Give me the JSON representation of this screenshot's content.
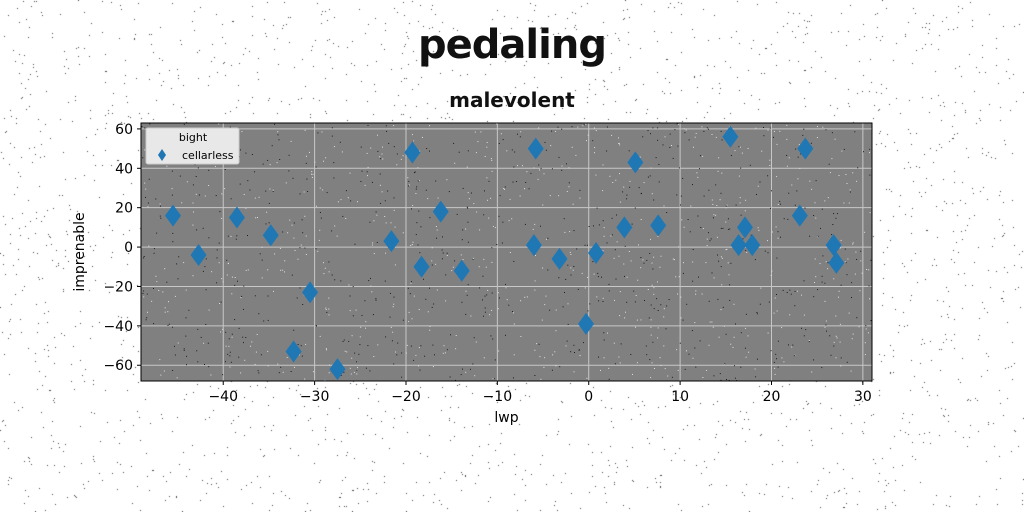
{
  "figure": {
    "suptitle": "pedaling",
    "subtitle": "malevolent"
  },
  "chart_data": {
    "type": "scatter",
    "title": "malevolent",
    "xlabel": "lwp",
    "ylabel": "imprenable",
    "xlim": [
      -49,
      31
    ],
    "ylim": [
      -68,
      63
    ],
    "x_ticks": [
      -40,
      -30,
      -20,
      -10,
      0,
      10,
      20,
      30
    ],
    "y_ticks": [
      -60,
      -40,
      -20,
      0,
      20,
      40,
      60
    ],
    "grid": true,
    "legend": {
      "title": "bight",
      "placement": "top-left"
    },
    "colors": {
      "axes_bg": "#808080",
      "marker": "#1f77b4",
      "grid": "#c8c8c8"
    },
    "series": [
      {
        "name": "cellarless",
        "marker": "diamond",
        "points": [
          [
            -45.5,
            16
          ],
          [
            -42.7,
            -4
          ],
          [
            -38.5,
            15
          ],
          [
            -34.8,
            6
          ],
          [
            -32.3,
            -53
          ],
          [
            -30.5,
            -23
          ],
          [
            -27.5,
            -62
          ],
          [
            -21.6,
            3
          ],
          [
            -19.3,
            48
          ],
          [
            -18.3,
            -10
          ],
          [
            -16.2,
            18
          ],
          [
            -13.9,
            -12
          ],
          [
            -6.0,
            1
          ],
          [
            -5.8,
            50
          ],
          [
            -3.2,
            -6
          ],
          [
            -0.3,
            -39
          ],
          [
            0.8,
            -3
          ],
          [
            3.9,
            10
          ],
          [
            5.1,
            43
          ],
          [
            7.6,
            11
          ],
          [
            15.5,
            56
          ],
          [
            16.4,
            1
          ],
          [
            17.1,
            10
          ],
          [
            17.9,
            1
          ],
          [
            23.1,
            16
          ],
          [
            23.7,
            50
          ],
          [
            26.8,
            1
          ],
          [
            27.1,
            -8
          ]
        ]
      }
    ]
  }
}
